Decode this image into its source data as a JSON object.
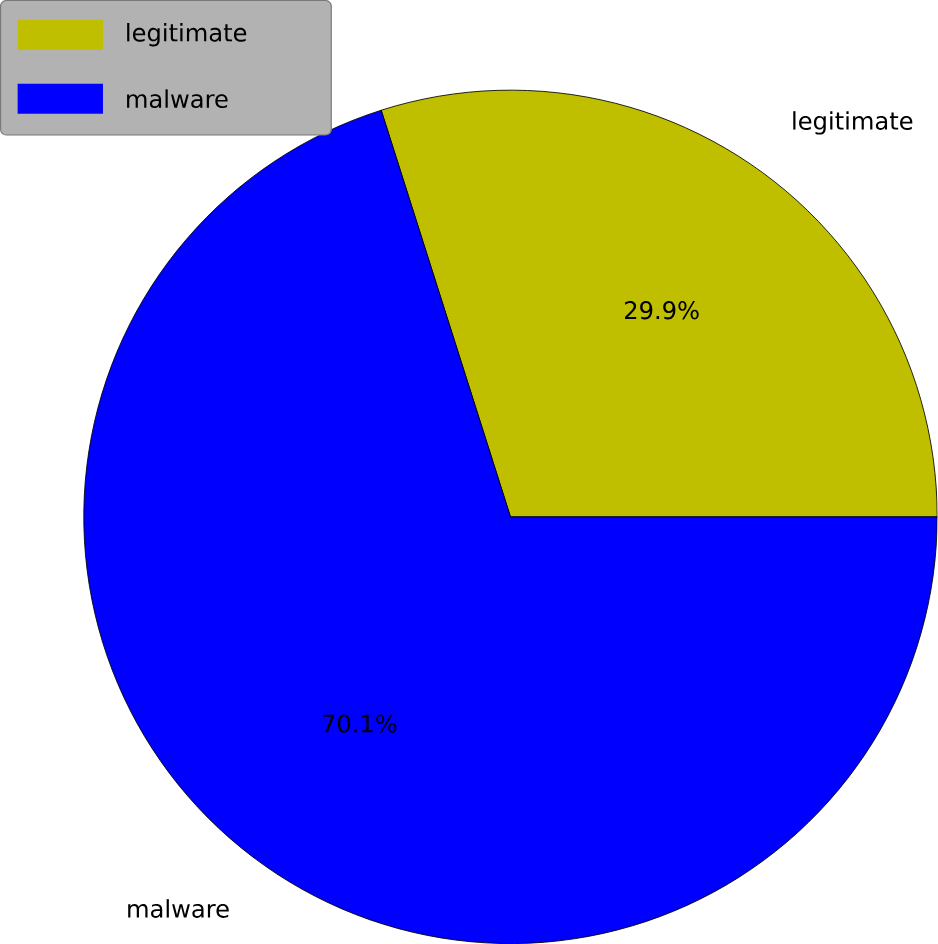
{
  "chart_data": {
    "type": "pie",
    "categories": [
      "legitimate",
      "malware"
    ],
    "values": [
      29.9,
      70.1
    ],
    "colors": [
      "#bfbf00",
      "#0000ff"
    ],
    "value_labels": [
      "29.9%",
      "70.1%"
    ],
    "legend": "top left"
  }
}
